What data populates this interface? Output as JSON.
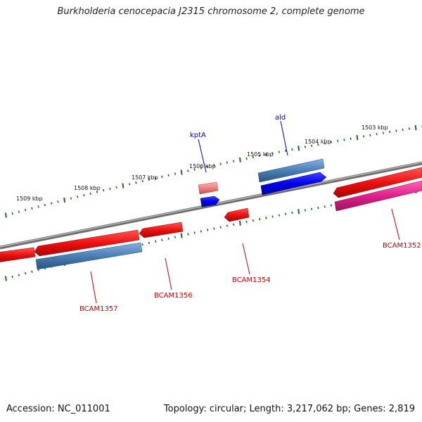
{
  "header": {
    "title": "Burkholderia cenocepacia J2315 chromosome 2, complete genome"
  },
  "scale": {
    "ticks": [
      "1509 kbp",
      "1508 kbp",
      "1507 kbp",
      "1506 kbp",
      "1505 kbp",
      "1504 kbp",
      "1503 kbp"
    ]
  },
  "genes": {
    "upper": [
      {
        "label": "kptA",
        "color": "#0000cc"
      },
      {
        "label": "ald",
        "color": "#0000cc"
      }
    ],
    "lower": [
      {
        "label": "BCAM1357",
        "color": "#cc0000"
      },
      {
        "label": "BCAM1356",
        "color": "#cc0000"
      },
      {
        "label": "BCAM1354",
        "color": "#cc0000"
      },
      {
        "label": "BCAM1352",
        "color": "#cc0000"
      }
    ]
  },
  "colors": {
    "backbone": "#8a8a8a",
    "tick": "#1a6e1a",
    "cds_red": "#ee1111",
    "cds_steelblue": "#4a7fb5",
    "cds_blue": "#0000ee",
    "cds_pink": "#f08080",
    "cds_magenta": "#e0208a"
  },
  "footer": {
    "accession": "Accession: NC_011001",
    "topology": "Topology: circular; Length: 3,217,062 bp; Genes: 2,819"
  }
}
